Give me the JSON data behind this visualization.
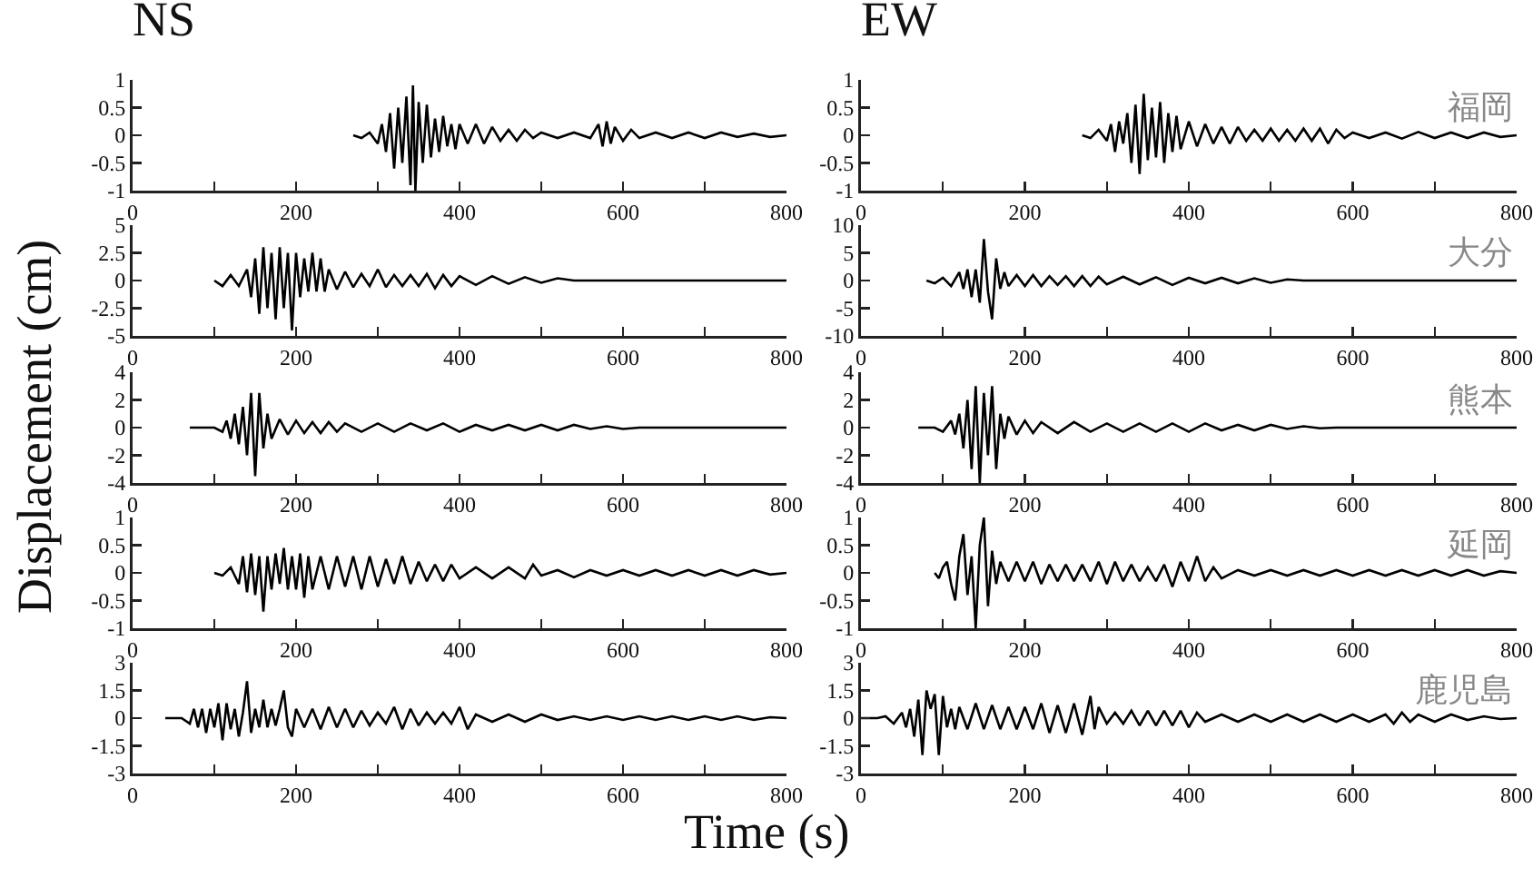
{
  "chart_data": [
    {
      "type": "line",
      "title": "NS",
      "xlim": [
        0,
        800
      ],
      "xticks": [
        0,
        {
          "value": 100,
          "label": null
        },
        200,
        {
          "value": 300,
          "label": null
        },
        400,
        {
          "value": 500,
          "label": null
        },
        600,
        {
          "value": 700,
          "label": null
        },
        800
      ],
      "ylim": [
        -1,
        1
      ],
      "yticks": [
        -1,
        -0.5,
        0,
        0.5,
        1
      ],
      "series": [
        {
          "color": "#000000",
          "x": [
            270,
            280,
            290,
            300,
            305,
            310,
            315,
            320,
            325,
            330,
            335,
            340,
            343,
            346,
            350,
            355,
            360,
            365,
            370,
            375,
            380,
            385,
            390,
            395,
            400,
            410,
            420,
            430,
            440,
            450,
            460,
            470,
            480,
            490,
            500,
            520,
            540,
            560,
            570,
            575,
            580,
            585,
            590,
            600,
            610,
            620,
            640,
            660,
            680,
            700,
            720,
            740,
            760,
            780,
            800
          ],
          "values": [
            0,
            -0.05,
            0.05,
            -0.15,
            0.2,
            -0.3,
            0.4,
            -0.6,
            0.5,
            -0.5,
            0.7,
            -0.9,
            0.9,
            -1,
            0.6,
            -0.5,
            0.55,
            -0.4,
            0.3,
            -0.3,
            0.35,
            -0.2,
            0.2,
            -0.25,
            0.2,
            -0.15,
            0.2,
            -0.15,
            0.15,
            -0.1,
            0.1,
            -0.1,
            0.1,
            -0.05,
            0.05,
            -0.05,
            0.05,
            -0.05,
            0.2,
            -0.2,
            0.25,
            -0.15,
            0.15,
            -0.1,
            0.1,
            -0.05,
            0.05,
            -0.05,
            0.05,
            -0.05,
            0.05,
            -0.03,
            0.03,
            -0.03,
            0
          ]
        }
      ]
    },
    {
      "type": "line",
      "title": "EW",
      "annotations": [
        "福岡"
      ],
      "xlim": [
        0,
        800
      ],
      "xticks": [
        0,
        {
          "value": 100,
          "label": null
        },
        200,
        {
          "value": 300,
          "label": null
        },
        400,
        {
          "value": 500,
          "label": null
        },
        600,
        {
          "value": 700,
          "label": null
        },
        800
      ],
      "ylim": [
        -1,
        1
      ],
      "yticks": [
        -1,
        -0.5,
        0,
        0.5,
        1
      ],
      "series": [
        {
          "color": "#000000",
          "x": [
            270,
            280,
            290,
            300,
            305,
            310,
            315,
            320,
            325,
            330,
            335,
            340,
            345,
            350,
            355,
            360,
            365,
            370,
            375,
            380,
            385,
            390,
            400,
            410,
            420,
            430,
            440,
            450,
            460,
            470,
            480,
            490,
            500,
            510,
            520,
            530,
            540,
            550,
            560,
            570,
            580,
            590,
            600,
            620,
            640,
            660,
            680,
            700,
            720,
            740,
            760,
            780,
            800
          ],
          "values": [
            0,
            -0.05,
            0.1,
            -0.1,
            0.2,
            -0.3,
            0.25,
            -0.15,
            0.4,
            -0.5,
            0.55,
            -0.7,
            0.75,
            -0.45,
            0.5,
            -0.4,
            0.6,
            -0.5,
            0.4,
            -0.3,
            0.35,
            -0.25,
            0.25,
            -0.2,
            0.2,
            -0.15,
            0.15,
            -0.15,
            0.15,
            -0.1,
            0.1,
            -0.1,
            0.12,
            -0.1,
            0.1,
            -0.1,
            0.12,
            -0.1,
            0.12,
            -0.15,
            0.1,
            -0.05,
            0.05,
            -0.05,
            0.05,
            -0.06,
            0.06,
            -0.05,
            0.05,
            -0.05,
            0.05,
            -0.03,
            0
          ]
        }
      ]
    },
    {
      "type": "line",
      "xlim": [
        0,
        800
      ],
      "xticks": [
        0,
        {
          "value": 100,
          "label": null
        },
        200,
        {
          "value": 300,
          "label": null
        },
        400,
        {
          "value": 500,
          "label": null
        },
        600,
        {
          "value": 700,
          "label": null
        },
        800
      ],
      "ylim": [
        -5,
        5
      ],
      "yticks": [
        -5,
        -2.5,
        0,
        2.5,
        5
      ],
      "series": [
        {
          "color": "#000000",
          "x": [
            100,
            110,
            120,
            130,
            140,
            145,
            150,
            155,
            160,
            165,
            170,
            175,
            180,
            185,
            190,
            195,
            200,
            205,
            210,
            215,
            220,
            225,
            230,
            235,
            240,
            250,
            260,
            270,
            280,
            290,
            300,
            310,
            320,
            330,
            340,
            350,
            360,
            370,
            380,
            390,
            400,
            420,
            440,
            460,
            480,
            500,
            520,
            540,
            800
          ],
          "values": [
            0,
            -0.5,
            0.5,
            -0.5,
            1,
            -1.5,
            2,
            -3,
            3,
            -2.5,
            2.5,
            -3.5,
            3,
            -2.5,
            2.5,
            -4.5,
            2.5,
            -1.5,
            2,
            -1,
            2.5,
            -1,
            2,
            -1,
            1,
            -0.8,
            0.8,
            -0.6,
            0.6,
            -0.5,
            1,
            -0.6,
            0.5,
            -0.5,
            0.5,
            -0.5,
            0.6,
            -0.7,
            0.5,
            -0.5,
            0.4,
            -0.4,
            0.4,
            -0.3,
            0.3,
            -0.2,
            0.2,
            0,
            0
          ]
        }
      ]
    },
    {
      "type": "line",
      "annotations": [
        "大分"
      ],
      "xlim": [
        0,
        800
      ],
      "xticks": [
        0,
        {
          "value": 100,
          "label": null
        },
        200,
        {
          "value": 300,
          "label": null
        },
        400,
        {
          "value": 500,
          "label": null
        },
        600,
        {
          "value": 700,
          "label": null
        },
        800
      ],
      "ylim": [
        -10,
        10
      ],
      "yticks": [
        -10,
        -5,
        0,
        5,
        10
      ],
      "series": [
        {
          "color": "#000000",
          "x": [
            80,
            90,
            100,
            110,
            120,
            125,
            130,
            135,
            140,
            145,
            150,
            155,
            160,
            165,
            170,
            175,
            180,
            190,
            200,
            210,
            220,
            230,
            240,
            250,
            260,
            270,
            280,
            290,
            300,
            320,
            340,
            360,
            380,
            400,
            420,
            440,
            460,
            480,
            500,
            520,
            540,
            800
          ],
          "values": [
            0,
            -0.5,
            0.5,
            -1,
            1.5,
            -1.5,
            2,
            -3,
            2,
            -4,
            7.5,
            -2,
            -7,
            4,
            -1.5,
            1.5,
            -1,
            1,
            -1,
            1,
            -1,
            0.8,
            -0.8,
            0.8,
            -1,
            0.8,
            -1,
            0.7,
            -0.7,
            0.7,
            -0.7,
            0.6,
            -0.8,
            0.5,
            -0.5,
            0.5,
            -0.5,
            0.4,
            -0.4,
            0.2,
            0,
            0
          ]
        }
      ]
    },
    {
      "type": "line",
      "ylabel": "Displacement (cm)",
      "xlim": [
        0,
        800
      ],
      "xticks": [
        0,
        {
          "value": 100,
          "label": null
        },
        200,
        {
          "value": 300,
          "label": null
        },
        400,
        {
          "value": 500,
          "label": null
        },
        600,
        {
          "value": 700,
          "label": null
        },
        800
      ],
      "ylim": [
        -4,
        4
      ],
      "yticks": [
        -4,
        -2,
        0,
        2,
        4
      ],
      "series": [
        {
          "color": "#000000",
          "x": [
            70,
            100,
            110,
            115,
            120,
            125,
            130,
            135,
            140,
            145,
            150,
            155,
            160,
            165,
            170,
            180,
            190,
            200,
            210,
            220,
            230,
            240,
            250,
            260,
            280,
            300,
            320,
            340,
            360,
            380,
            400,
            420,
            440,
            460,
            480,
            500,
            520,
            540,
            560,
            580,
            600,
            620,
            800
          ],
          "values": [
            0,
            0,
            -0.3,
            0.5,
            -0.8,
            1,
            -1.2,
            1.5,
            -2,
            2.5,
            -3.5,
            2.5,
            -1.5,
            1,
            -0.8,
            0.6,
            -0.5,
            0.5,
            -0.4,
            0.4,
            -0.4,
            0.4,
            -0.3,
            0.3,
            -0.3,
            0.3,
            -0.3,
            0.3,
            -0.2,
            0.3,
            -0.3,
            0.2,
            -0.2,
            0.2,
            -0.2,
            0.2,
            -0.2,
            0.2,
            -0.1,
            0.1,
            -0.1,
            0,
            0
          ]
        }
      ]
    },
    {
      "type": "line",
      "annotations": [
        "熊本"
      ],
      "xlim": [
        0,
        800
      ],
      "xticks": [
        0,
        {
          "value": 100,
          "label": null
        },
        200,
        {
          "value": 300,
          "label": null
        },
        400,
        {
          "value": 500,
          "label": null
        },
        600,
        {
          "value": 700,
          "label": null
        },
        800
      ],
      "ylim": [
        -4,
        4
      ],
      "yticks": [
        -4,
        -2,
        0,
        2,
        4
      ],
      "series": [
        {
          "color": "#000000",
          "x": [
            70,
            90,
            100,
            110,
            115,
            120,
            125,
            130,
            135,
            140,
            145,
            150,
            155,
            160,
            165,
            170,
            175,
            180,
            190,
            200,
            210,
            220,
            240,
            260,
            280,
            300,
            320,
            340,
            360,
            380,
            400,
            420,
            440,
            460,
            480,
            500,
            520,
            540,
            560,
            580,
            800
          ],
          "values": [
            0,
            0,
            -0.3,
            0.5,
            -0.5,
            1,
            -1.5,
            2,
            -3,
            3,
            -4,
            2.5,
            -2,
            3,
            -3,
            1,
            -0.8,
            0.8,
            -0.5,
            0.5,
            -0.4,
            0.4,
            -0.4,
            0.4,
            -0.3,
            0.3,
            -0.3,
            0.3,
            -0.3,
            0.3,
            -0.3,
            0.3,
            -0.2,
            0.2,
            -0.2,
            0.2,
            -0.1,
            0.1,
            -0.05,
            0,
            0
          ]
        }
      ]
    },
    {
      "type": "line",
      "xlim": [
        0,
        800
      ],
      "xticks": [
        0,
        {
          "value": 100,
          "label": null
        },
        200,
        {
          "value": 300,
          "label": null
        },
        400,
        {
          "value": 500,
          "label": null
        },
        600,
        {
          "value": 700,
          "label": null
        },
        800
      ],
      "ylim": [
        -1,
        1
      ],
      "yticks": [
        -1,
        -0.5,
        0,
        0.5,
        1
      ],
      "series": [
        {
          "color": "#000000",
          "x": [
            100,
            110,
            120,
            130,
            135,
            140,
            145,
            150,
            155,
            160,
            165,
            170,
            175,
            180,
            185,
            190,
            195,
            200,
            205,
            210,
            215,
            220,
            230,
            240,
            250,
            260,
            270,
            280,
            290,
            300,
            310,
            320,
            330,
            340,
            350,
            360,
            370,
            380,
            390,
            400,
            420,
            440,
            460,
            480,
            490,
            500,
            520,
            540,
            560,
            580,
            600,
            620,
            640,
            660,
            680,
            700,
            720,
            740,
            760,
            780,
            800
          ],
          "values": [
            0,
            -0.05,
            0.1,
            -0.2,
            0.3,
            -0.35,
            0.35,
            -0.4,
            0.3,
            -0.7,
            0.3,
            -0.3,
            0.35,
            -0.2,
            0.45,
            -0.3,
            0.3,
            -0.3,
            0.35,
            -0.45,
            0.3,
            -0.3,
            0.3,
            -0.3,
            0.3,
            -0.25,
            0.3,
            -0.3,
            0.3,
            -0.25,
            0.25,
            -0.2,
            0.3,
            -0.2,
            0.2,
            -0.15,
            0.15,
            -0.15,
            0.15,
            -0.1,
            0.1,
            -0.1,
            0.1,
            -0.1,
            0.15,
            -0.05,
            0.05,
            -0.08,
            0.05,
            -0.05,
            0.05,
            -0.05,
            0.05,
            -0.05,
            0.05,
            -0.05,
            0.05,
            -0.05,
            0.05,
            -0.03,
            0
          ]
        }
      ]
    },
    {
      "type": "line",
      "annotations": [
        "延岡"
      ],
      "xlim": [
        0,
        800
      ],
      "xticks": [
        0,
        {
          "value": 100,
          "label": null
        },
        200,
        {
          "value": 300,
          "label": null
        },
        400,
        {
          "value": 500,
          "label": null
        },
        600,
        {
          "value": 700,
          "label": null
        },
        800
      ],
      "ylim": [
        -1,
        1
      ],
      "yticks": [
        -1,
        -0.5,
        0,
        0.5,
        1
      ],
      "series": [
        {
          "color": "#000000",
          "x": [
            90,
            95,
            100,
            105,
            110,
            115,
            120,
            125,
            130,
            135,
            140,
            145,
            150,
            155,
            160,
            165,
            170,
            180,
            190,
            200,
            210,
            220,
            230,
            240,
            250,
            260,
            270,
            280,
            290,
            300,
            310,
            320,
            330,
            340,
            350,
            360,
            370,
            380,
            390,
            400,
            410,
            420,
            430,
            440,
            460,
            480,
            500,
            520,
            540,
            560,
            580,
            600,
            620,
            640,
            660,
            680,
            700,
            720,
            740,
            760,
            780,
            800
          ],
          "values": [
            0,
            -0.1,
            0.1,
            0.2,
            -0.2,
            -0.5,
            0.3,
            0.7,
            -0.4,
            0.3,
            -1,
            0.5,
            1,
            -0.6,
            0.4,
            -0.2,
            0.2,
            -0.15,
            0.2,
            -0.15,
            0.2,
            -0.2,
            0.15,
            -0.15,
            0.15,
            -0.15,
            0.15,
            -0.15,
            0.2,
            -0.2,
            0.2,
            -0.15,
            0.15,
            -0.15,
            0.1,
            -0.15,
            0.15,
            -0.25,
            0.2,
            -0.15,
            0.3,
            -0.15,
            0.1,
            -0.1,
            0.05,
            -0.05,
            0.05,
            -0.05,
            0.05,
            -0.05,
            0.05,
            -0.05,
            0.05,
            -0.05,
            0.05,
            -0.05,
            0.05,
            -0.05,
            0.05,
            -0.05,
            0.03,
            0
          ]
        }
      ]
    },
    {
      "type": "line",
      "xlabel": "Time (s)",
      "xlim": [
        0,
        800
      ],
      "xticks": [
        0,
        {
          "value": 100,
          "label": null
        },
        200,
        {
          "value": 300,
          "label": null
        },
        400,
        {
          "value": 500,
          "label": null
        },
        600,
        {
          "value": 700,
          "label": null
        },
        800
      ],
      "ylim": [
        -3,
        3
      ],
      "yticks": [
        -3,
        -1.5,
        0,
        1.5,
        3
      ],
      "series": [
        {
          "color": "#000000",
          "x": [
            40,
            60,
            70,
            75,
            80,
            85,
            90,
            95,
            100,
            105,
            110,
            115,
            120,
            125,
            130,
            135,
            140,
            145,
            150,
            155,
            160,
            165,
            170,
            175,
            180,
            185,
            190,
            195,
            200,
            210,
            220,
            230,
            240,
            250,
            260,
            270,
            280,
            290,
            300,
            310,
            320,
            330,
            340,
            350,
            360,
            370,
            380,
            390,
            400,
            410,
            420,
            440,
            460,
            480,
            500,
            520,
            540,
            560,
            580,
            600,
            620,
            640,
            660,
            680,
            700,
            720,
            740,
            760,
            780,
            800
          ],
          "values": [
            0,
            0,
            -0.3,
            0.5,
            -0.5,
            0.5,
            -0.8,
            0.5,
            -0.5,
            0.8,
            -1.2,
            0.8,
            -0.6,
            0.5,
            -1,
            0.3,
            2,
            -0.8,
            0.5,
            -0.5,
            1,
            -0.5,
            0.5,
            -0.4,
            0.5,
            1.5,
            -0.5,
            -1,
            0.5,
            -0.5,
            0.5,
            -0.6,
            0.6,
            -0.5,
            0.5,
            -0.5,
            0.4,
            -0.4,
            0.3,
            -0.3,
            0.6,
            -0.6,
            0.5,
            -0.4,
            0.3,
            -0.3,
            0.3,
            -0.3,
            0.6,
            -0.6,
            0.2,
            -0.2,
            0.2,
            -0.2,
            0.2,
            -0.1,
            0.1,
            -0.1,
            0.1,
            -0.1,
            0.1,
            -0.1,
            0.1,
            -0.1,
            0.1,
            -0.1,
            0.1,
            -0.1,
            0.05,
            0
          ]
        }
      ]
    },
    {
      "type": "line",
      "annotations": [
        "鹿児島"
      ],
      "xlim": [
        0,
        800
      ],
      "xticks": [
        0,
        {
          "value": 100,
          "label": null
        },
        200,
        {
          "value": 300,
          "label": null
        },
        400,
        {
          "value": 500,
          "label": null
        },
        600,
        {
          "value": 700,
          "label": null
        },
        800
      ],
      "ylim": [
        -3,
        3
      ],
      "yticks": [
        -3,
        -1.5,
        0,
        1.5,
        3
      ],
      "series": [
        {
          "color": "#000000",
          "x": [
            0,
            20,
            30,
            40,
            50,
            55,
            60,
            65,
            70,
            75,
            80,
            85,
            90,
            95,
            100,
            105,
            110,
            115,
            120,
            130,
            140,
            150,
            160,
            170,
            180,
            190,
            200,
            210,
            220,
            230,
            240,
            250,
            260,
            270,
            280,
            285,
            290,
            300,
            310,
            320,
            330,
            340,
            350,
            360,
            370,
            380,
            390,
            400,
            410,
            420,
            440,
            460,
            480,
            500,
            520,
            540,
            560,
            580,
            600,
            620,
            640,
            650,
            660,
            670,
            680,
            700,
            720,
            740,
            760,
            780,
            800
          ],
          "values": [
            0,
            0,
            0.1,
            -0.3,
            0.3,
            -0.5,
            0.5,
            -1,
            1,
            -2,
            1.5,
            0.5,
            1.3,
            -2,
            1.2,
            -0.5,
            0.5,
            -0.6,
            0.6,
            -0.6,
            0.8,
            -0.6,
            0.7,
            -0.6,
            0.6,
            -0.6,
            0.6,
            -0.6,
            0.8,
            -0.8,
            0.7,
            -0.8,
            0.8,
            -0.9,
            1.2,
            -0.6,
            0.6,
            -0.3,
            0.3,
            -0.3,
            0.4,
            -0.4,
            0.4,
            -0.4,
            0.4,
            -0.4,
            0.4,
            -0.5,
            0.3,
            -0.2,
            0.2,
            -0.2,
            0.2,
            -0.2,
            0.2,
            -0.2,
            0.2,
            -0.2,
            0.2,
            -0.2,
            0.2,
            -0.3,
            0.3,
            -0.2,
            0.2,
            -0.2,
            0.2,
            -0.1,
            0.1,
            -0.05,
            0
          ]
        }
      ]
    }
  ]
}
